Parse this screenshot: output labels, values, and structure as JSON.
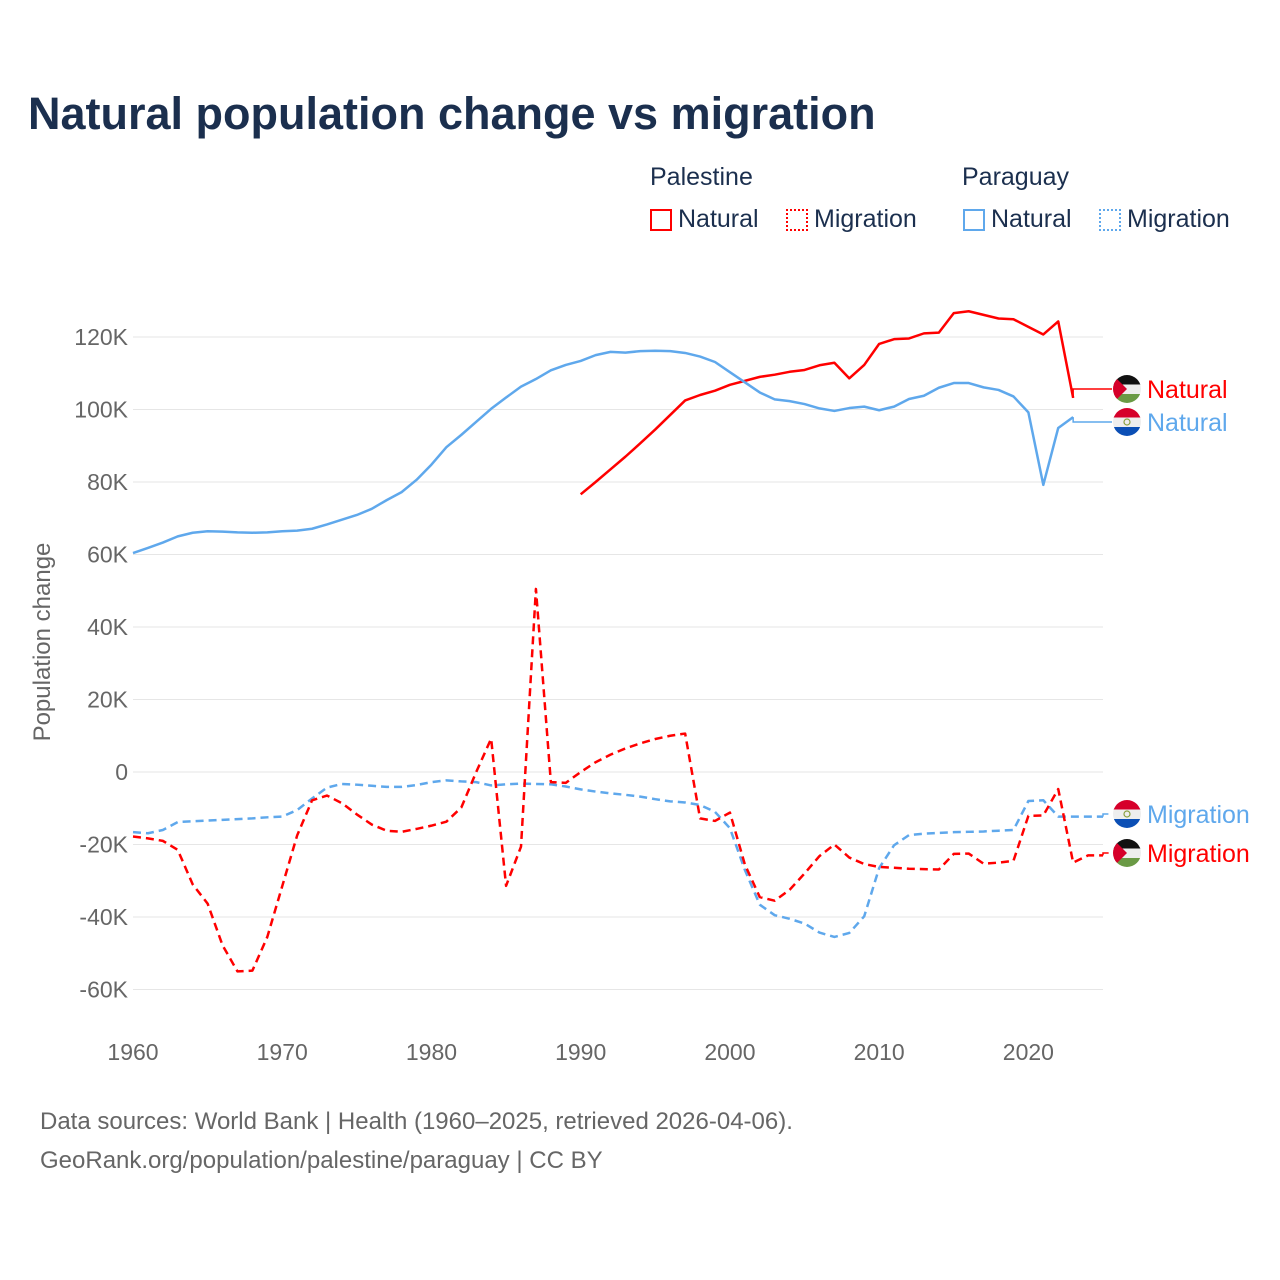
{
  "title": "Natural population change vs migration",
  "legend": {
    "groups": [
      {
        "name": "Palestine",
        "color": "#ff0000",
        "items": [
          "Natural",
          "Migration"
        ]
      },
      {
        "name": "Paraguay",
        "color": "#5fa8ec",
        "items": [
          "Natural",
          "Migration"
        ]
      }
    ]
  },
  "footer": {
    "line1": "Data sources: World Bank | Health (1960–2025, retrieved 2026-04-06).",
    "line2": "GeoRank.org/population/palestine/paraguay | CC BY"
  },
  "chart_data": {
    "type": "line",
    "title": "Natural population change vs migration",
    "xlabel": "",
    "ylabel": "Population change",
    "xlim": [
      1960,
      2025
    ],
    "ylim": [
      -70000,
      130000
    ],
    "x_ticks": [
      "1960",
      "1970",
      "1980",
      "1990",
      "2000",
      "2010",
      "2020"
    ],
    "y_ticks": [
      {
        "value": -60000,
        "label": "-60K"
      },
      {
        "value": -40000,
        "label": "-40K"
      },
      {
        "value": -20000,
        "label": "-20K"
      },
      {
        "value": 0,
        "label": "0"
      },
      {
        "value": 20000,
        "label": "20K"
      },
      {
        "value": 40000,
        "label": "40K"
      },
      {
        "value": 60000,
        "label": "60K"
      },
      {
        "value": 80000,
        "label": "80K"
      },
      {
        "value": 100000,
        "label": "100K"
      },
      {
        "value": 120000,
        "label": "120K"
      }
    ],
    "series": [
      {
        "name": "Palestine Natural",
        "label": "Natural",
        "country": "palestine",
        "color": "#ff0000",
        "dash": false,
        "start": 1990,
        "values": [
          76600,
          80000,
          83500,
          87000,
          90700,
          94500,
          98500,
          102500,
          104000,
          105200,
          106800,
          107900,
          109000,
          109600,
          110400,
          110900,
          112200,
          112900,
          108600,
          112300,
          118100,
          119400,
          119600,
          121000,
          121200,
          126600,
          127100,
          126100,
          125100,
          124900,
          122800,
          120700,
          124300,
          103200
        ]
      },
      {
        "name": "Paraguay Natural",
        "label": "Natural",
        "country": "paraguay",
        "color": "#5fa8ec",
        "dash": false,
        "start": 1960,
        "values": [
          60400,
          61800,
          63300,
          65000,
          66000,
          66400,
          66300,
          66100,
          66000,
          66100,
          66400,
          66600,
          67100,
          68300,
          69600,
          70900,
          72600,
          75000,
          77200,
          80600,
          84800,
          89600,
          93000,
          96600,
          100200,
          103300,
          106300,
          108400,
          110800,
          112300,
          113400,
          115000,
          115900,
          115700,
          116100,
          116200,
          116100,
          115600,
          114600,
          113100,
          110300,
          107500,
          104700,
          102800,
          102300,
          101500,
          100300,
          99600,
          100400,
          100800,
          99800,
          100800,
          102900,
          103800,
          106000,
          107300,
          107300,
          106100,
          105400,
          103600,
          99200,
          79200,
          94900,
          97900
        ]
      },
      {
        "name": "Paraguay Migration",
        "label": "Migration",
        "country": "paraguay",
        "color": "#5fa8ec",
        "dash": true,
        "start": 1960,
        "values": [
          -16600,
          -16900,
          -16000,
          -13800,
          -13600,
          -13400,
          -13200,
          -13000,
          -12800,
          -12500,
          -12300,
          -10500,
          -7300,
          -4300,
          -3300,
          -3500,
          -3800,
          -4100,
          -4100,
          -3600,
          -2800,
          -2300,
          -2600,
          -2800,
          -3700,
          -3400,
          -3200,
          -3300,
          -3400,
          -4000,
          -4800,
          -5400,
          -5900,
          -6300,
          -6800,
          -7500,
          -8100,
          -8400,
          -9100,
          -11000,
          -15500,
          -27000,
          -36600,
          -39500,
          -40500,
          -41800,
          -44300,
          -45500,
          -44400,
          -39800,
          -26500,
          -20200,
          -17400,
          -17000,
          -16800,
          -16600,
          -16500,
          -16400,
          -16200,
          -16000,
          -8000,
          -7800,
          -12300,
          -12300,
          -12300,
          -12300
        ]
      },
      {
        "name": "Palestine Migration",
        "label": "Migration",
        "country": "palestine",
        "color": "#ff0000",
        "dash": true,
        "start": 1960,
        "values": [
          -17800,
          -18300,
          -19000,
          -21500,
          -31000,
          -36300,
          -47800,
          -55000,
          -54800,
          -45500,
          -31500,
          -17500,
          -7800,
          -6500,
          -8600,
          -11700,
          -14500,
          -16200,
          -16500,
          -15700,
          -14800,
          -13700,
          -9800,
          0,
          9200,
          -31400,
          -20600,
          50500,
          -2800,
          -3000,
          0,
          2700,
          4800,
          6500,
          7900,
          9100,
          10000,
          10600,
          -12800,
          -13500,
          -11200,
          -25500,
          -34500,
          -35500,
          -32500,
          -28000,
          -23200,
          -20000,
          -23600,
          -25400,
          -26200,
          -26400,
          -26700,
          -26800,
          -26900,
          -22600,
          -22500,
          -25300,
          -25000,
          -24500,
          -12100,
          -12000,
          -4700,
          -25000,
          -23000,
          -23000
        ]
      }
    ],
    "grid": true,
    "legend_placement": "top-right"
  }
}
